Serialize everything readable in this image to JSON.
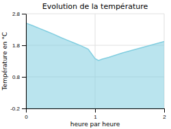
{
  "chart_data": {
    "type": "area",
    "title": "Evolution de la température",
    "xlabel": "heure par heure",
    "ylabel": "Température en °C",
    "x": [
      0,
      0.1,
      0.2,
      0.3,
      0.4,
      0.5,
      0.6,
      0.7,
      0.8,
      0.9,
      1.0,
      1.05,
      1.1,
      1.2,
      1.3,
      1.4,
      1.5,
      1.6,
      1.7,
      1.8,
      1.9,
      2.0
    ],
    "values": [
      2.5,
      2.42,
      2.33,
      2.24,
      2.15,
      2.05,
      1.96,
      1.87,
      1.78,
      1.68,
      1.38,
      1.32,
      1.36,
      1.42,
      1.49,
      1.56,
      1.62,
      1.68,
      1.74,
      1.8,
      1.86,
      1.92
    ],
    "color": "#82CEE0",
    "xlim": [
      0,
      2
    ],
    "ylim": [
      -0.2,
      2.8
    ],
    "xticks": [
      0,
      1,
      2
    ],
    "yticks": [
      -0.2,
      0.8,
      1.8,
      2.8
    ],
    "grid": true
  }
}
